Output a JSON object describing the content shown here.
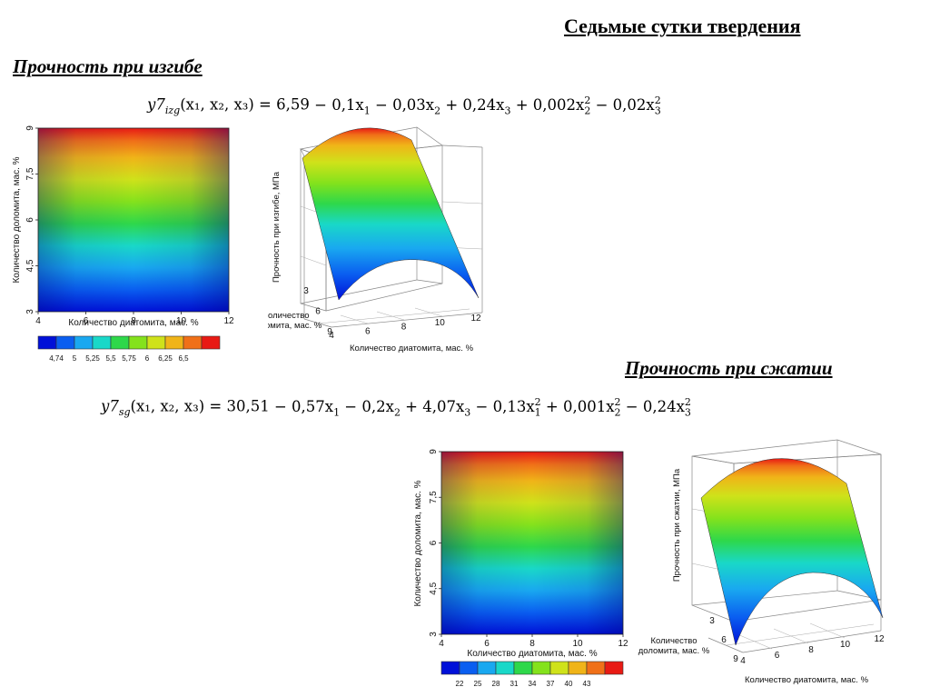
{
  "page_title": "Седьмые сутки твердения",
  "section1": {
    "title": "Прочность при изгибе",
    "formula": {
      "lhs_var": "y7",
      "lhs_sub": "izg",
      "args": "(x₁, x₂, x₃) = ",
      "terms": [
        {
          "text": "6,59"
        },
        {
          "text": " − 0,1x",
          "sub": "1"
        },
        {
          "text": " − 0,03x",
          "sub": "2"
        },
        {
          "text": " + 0,24x",
          "sub": "3"
        },
        {
          "text": " + 0,002x",
          "sub": "2",
          "sup": "2"
        },
        {
          "text": " − 0,02x",
          "sub": "3",
          "sup": "2"
        }
      ]
    }
  },
  "section2": {
    "title": "Прочность при сжатии",
    "formula": {
      "lhs_var": "y7",
      "lhs_sub": "sg",
      "args": "(x₁, x₂, x₃) = ",
      "terms": [
        {
          "text": "30,51"
        },
        {
          "text": " − 0,57x",
          "sub": "1"
        },
        {
          "text": " − 0,2x",
          "sub": "2"
        },
        {
          "text": " + 4,07x",
          "sub": "3"
        },
        {
          "text": " − 0,13x",
          "sub": "1",
          "sup": "2"
        },
        {
          "text": " + 0,001x",
          "sub": "2",
          "sup": "2"
        },
        {
          "text": " − 0,24x",
          "sub": "3",
          "sup": "2"
        }
      ]
    }
  },
  "chart_data": [
    {
      "type": "heatmap",
      "xlabel": "Количество диатомита, мас. %",
      "ylabel": "Количество  доломита, мас. %",
      "x_ticks": [
        "4",
        "6",
        "8",
        "10",
        "12"
      ],
      "y_ticks": [
        "3",
        "4,5",
        "6",
        "7,5",
        "9"
      ],
      "xlim": [
        4,
        12
      ],
      "ylim": [
        3,
        9
      ],
      "legend_labels": [
        "4,74",
        "5",
        "5,25",
        "5,5",
        "5,75",
        "6",
        "6,25",
        "6,5"
      ],
      "legend_colors": [
        "#0010d8",
        "#0a5ef0",
        "#19a8f0",
        "#19d8c8",
        "#2ed84a",
        "#84e21c",
        "#cfe21a",
        "#f0b418",
        "#f07018",
        "#e81a14"
      ]
    },
    {
      "type": "surface",
      "zlabel": "Прочность при изгибе, МПа",
      "xlabel": "Количество диатомита, мас. %",
      "ylabel": "Количество\nдоломита, мас. %",
      "x_ticks": [
        "4",
        "6",
        "8",
        "10",
        "12"
      ],
      "y_ticks": [
        "3",
        "6",
        "9"
      ]
    },
    {
      "type": "heatmap",
      "xlabel": "Количество диатомита, мас. %",
      "ylabel": "Количество  доломита, мас. %",
      "x_ticks": [
        "4",
        "6",
        "8",
        "10",
        "12"
      ],
      "y_ticks": [
        "3",
        "4,5",
        "6",
        "7,5",
        "9"
      ],
      "xlim": [
        4,
        12
      ],
      "ylim": [
        3,
        9
      ],
      "legend_labels": [
        "22",
        "25",
        "28",
        "31",
        "34",
        "37",
        "40",
        "43"
      ],
      "legend_colors": [
        "#0010d8",
        "#0a5ef0",
        "#19a8f0",
        "#19d8c8",
        "#2ed84a",
        "#84e21c",
        "#cfe21a",
        "#f0b418",
        "#f07018",
        "#e81a14"
      ]
    },
    {
      "type": "surface",
      "zlabel": "Прочность при сжатии, МПа",
      "xlabel": "Количество диатомита, мас. %",
      "ylabel": "Количество\nдоломита, мас. %",
      "x_ticks": [
        "4",
        "6",
        "8",
        "10",
        "12"
      ],
      "y_ticks": [
        "3",
        "6",
        "9"
      ]
    }
  ]
}
